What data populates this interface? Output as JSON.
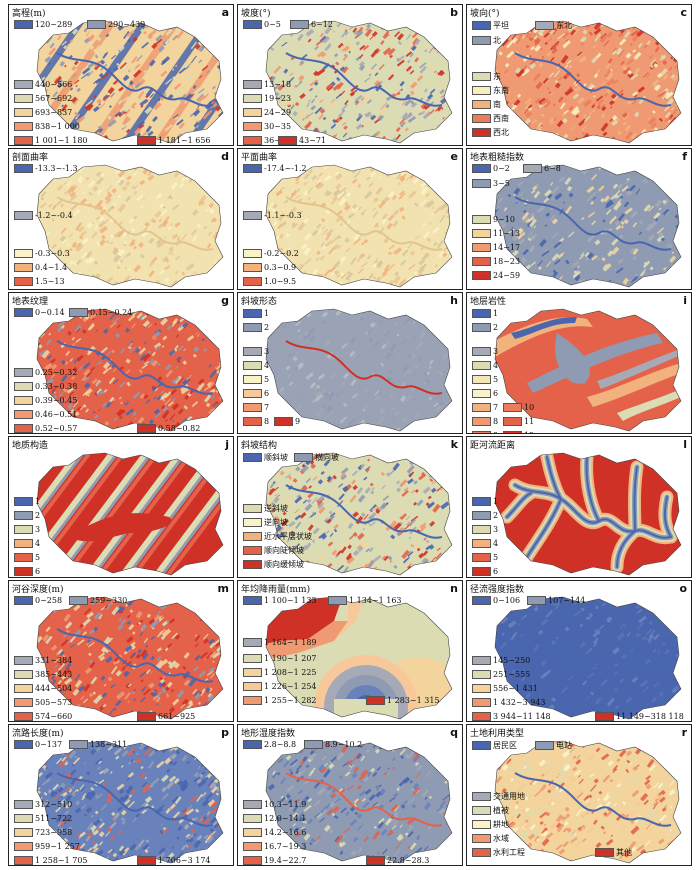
{
  "panels": [
    {
      "id": "a",
      "title": "高程(m)",
      "letter": "a",
      "scheme": "elev",
      "legend": [
        {
          "label": "120~289",
          "color": "#4a66ae"
        },
        {
          "label": "290~439",
          "color": "#8e9bb3"
        },
        {
          "label": "440~566",
          "color": "#a5aab6"
        },
        {
          "label": "567~692",
          "color": "#dcdcb4"
        },
        {
          "label": "693~837",
          "color": "#f2d49c"
        },
        {
          "label": "838~1 000",
          "color": "#ef9a72"
        },
        {
          "label": "1 001~1 180",
          "color": "#e4624a"
        },
        {
          "label": "1 181~1 656",
          "color": "#cf3127"
        }
      ]
    },
    {
      "id": "b",
      "title": "坡度(°)",
      "letter": "b",
      "scheme": "noise",
      "legend": [
        {
          "label": "0~5",
          "color": "#4a66ae"
        },
        {
          "label": "6~12",
          "color": "#8e9bb3"
        },
        {
          "label": "13~18",
          "color": "#a5aab6"
        },
        {
          "label": "19~23",
          "color": "#dcdcb4"
        },
        {
          "label": "24~29",
          "color": "#f2d49c"
        },
        {
          "label": "30~35",
          "color": "#ef9a72"
        },
        {
          "label": "36~42",
          "color": "#e4624a"
        },
        {
          "label": "43~71",
          "color": "#cf3127"
        }
      ]
    },
    {
      "id": "c",
      "title": "坡向(°)",
      "letter": "c",
      "scheme": "aspect",
      "legend": [
        {
          "label": "平坦",
          "color": "#4a66ae"
        },
        {
          "label": "东北",
          "color": "#a5aab6"
        },
        {
          "label": "北",
          "color": "#8e9bb3"
        },
        {
          "label": "东",
          "color": "#dcdcb4"
        },
        {
          "label": "东南",
          "color": "#f7eec0"
        },
        {
          "label": "南",
          "color": "#f2b27e"
        },
        {
          "label": "西南",
          "color": "#ea7e5c"
        },
        {
          "label": "西北",
          "color": "#cf3127"
        }
      ]
    },
    {
      "id": "d",
      "title": "剖面曲率",
      "letter": "d",
      "scheme": "curv",
      "legend": [
        {
          "label": "-13.3~-1.3",
          "color": "#4a66ae"
        },
        {
          "label": "-1.2~-0.4",
          "color": "#a5aab6"
        },
        {
          "label": "-0.3~0.3",
          "color": "#faf3c8"
        },
        {
          "label": "0.4~1.4",
          "color": "#f2b27e"
        },
        {
          "label": "1.5~13",
          "color": "#e4624a"
        }
      ]
    },
    {
      "id": "e",
      "title": "平面曲率",
      "letter": "e",
      "scheme": "curv",
      "legend": [
        {
          "label": "-17.4~-1.2",
          "color": "#4a66ae"
        },
        {
          "label": "-1.1~-0.3",
          "color": "#a5aab6"
        },
        {
          "label": "-0.2~0.2",
          "color": "#faf3c8"
        },
        {
          "label": "0.3~0.9",
          "color": "#f2b27e"
        },
        {
          "label": "1.0~9.5",
          "color": "#e4624a"
        }
      ]
    },
    {
      "id": "f",
      "title": "地表粗糙指数",
      "letter": "f",
      "scheme": "rough",
      "legend": [
        {
          "label": "0~2",
          "color": "#4a66ae"
        },
        {
          "label": "6~8",
          "color": "#a5aab6"
        },
        {
          "label": "3~5",
          "color": "#8e9bb3"
        },
        {
          "label": "9~10",
          "color": "#dcdcb4"
        },
        {
          "label": "11~13",
          "color": "#f2d49c"
        },
        {
          "label": "14~17",
          "color": "#ef9a72"
        },
        {
          "label": "18~23",
          "color": "#e4624a"
        },
        {
          "label": "24~59",
          "color": "#cf3127"
        }
      ]
    },
    {
      "id": "g",
      "title": "地表纹理",
      "letter": "g",
      "scheme": "texture",
      "legend": [
        {
          "label": "0~0.14",
          "color": "#4a66ae"
        },
        {
          "label": "0.15~0.24",
          "color": "#8e9bb3"
        },
        {
          "label": "0.25~0.32",
          "color": "#a5aab6"
        },
        {
          "label": "0.33~0.38",
          "color": "#dcdcb4"
        },
        {
          "label": "0.39~0.45",
          "color": "#f2d49c"
        },
        {
          "label": "0.46~0.51",
          "color": "#ef9a72"
        },
        {
          "label": "0.52~0.57",
          "color": "#e4624a"
        },
        {
          "label": "0.58~0.82",
          "color": "#cf3127"
        }
      ]
    },
    {
      "id": "h",
      "title": "斜坡形态",
      "letter": "h",
      "scheme": "gray",
      "legend": [
        {
          "label": "1",
          "color": "#4a66ae"
        },
        {
          "label": "2",
          "color": "#8e9bb3"
        },
        {
          "label": "3",
          "color": "#a5aab6"
        },
        {
          "label": "4",
          "color": "#dcdcb4"
        },
        {
          "label": "5",
          "color": "#faf3c8"
        },
        {
          "label": "6",
          "color": "#f7c99a"
        },
        {
          "label": "7",
          "color": "#ef9a72"
        },
        {
          "label": "8",
          "color": "#e4624a"
        },
        {
          "label": "9",
          "color": "#cf3127"
        }
      ]
    },
    {
      "id": "i",
      "title": "地层岩性",
      "letter": "i",
      "scheme": "litho",
      "legend": [
        {
          "label": "1",
          "color": "#4a66ae"
        },
        {
          "label": "2",
          "color": "#8e9bb3"
        },
        {
          "label": "3",
          "color": "#a5aab6"
        },
        {
          "label": "4",
          "color": "#dcdcb4"
        },
        {
          "label": "5",
          "color": "#f2e7b5"
        },
        {
          "label": "6",
          "color": "#faf3c8"
        },
        {
          "label": "7",
          "color": "#f2b27e"
        },
        {
          "label": "10",
          "color": "#ea7e5c"
        },
        {
          "label": "8",
          "color": "#ef9a72"
        },
        {
          "label": "11",
          "color": "#e4624a"
        },
        {
          "label": "9",
          "color": "#e87e60"
        },
        {
          "label": "12",
          "color": "#cf3127"
        }
      ]
    },
    {
      "id": "j",
      "title": "地质构造",
      "letter": "j",
      "scheme": "struct",
      "legend": [
        {
          "label": "1",
          "color": "#4a66ae"
        },
        {
          "label": "2",
          "color": "#8e9bb3"
        },
        {
          "label": "3",
          "color": "#dcdcb4"
        },
        {
          "label": "4",
          "color": "#f2b27e"
        },
        {
          "label": "5",
          "color": "#e4624a"
        },
        {
          "label": "6",
          "color": "#cf3127"
        }
      ]
    },
    {
      "id": "k",
      "title": "斜坡结构",
      "letter": "k",
      "scheme": "noise",
      "legend": [
        {
          "label": "顺斜坡",
          "color": "#4a66ae"
        },
        {
          "label": "横向坡",
          "color": "#8e9bb3"
        },
        {
          "label": "逆斜坡",
          "color": "#dcdcb4"
        },
        {
          "label": "逆向坡",
          "color": "#faf3c8"
        },
        {
          "label": "近水平层状坡",
          "color": "#f2b27e"
        },
        {
          "label": "顺向陡倾坡",
          "color": "#e4624a"
        },
        {
          "label": "顺向缓倾坡",
          "color": "#cf3127"
        }
      ]
    },
    {
      "id": "l",
      "title": "距河流距离",
      "letter": "l",
      "scheme": "river",
      "legend": [
        {
          "label": "1",
          "color": "#4a66ae"
        },
        {
          "label": "2",
          "color": "#8e9bb3"
        },
        {
          "label": "3",
          "color": "#dcdcb4"
        },
        {
          "label": "4",
          "color": "#f2b27e"
        },
        {
          "label": "5",
          "color": "#e4624a"
        },
        {
          "label": "6",
          "color": "#cf3127"
        }
      ]
    },
    {
      "id": "m",
      "title": "河谷深度(m)",
      "letter": "m",
      "scheme": "texture",
      "legend": [
        {
          "label": "0~258",
          "color": "#4a66ae"
        },
        {
          "label": "259~330",
          "color": "#8e9bb3"
        },
        {
          "label": "331~384",
          "color": "#a5aab6"
        },
        {
          "label": "385~443",
          "color": "#dcdcb4"
        },
        {
          "label": "444~504",
          "color": "#f2d49c"
        },
        {
          "label": "505~573",
          "color": "#ef9a72"
        },
        {
          "label": "574~660",
          "color": "#e4624a"
        },
        {
          "label": "661~925",
          "color": "#cf3127"
        }
      ]
    },
    {
      "id": "n",
      "title": "年均降雨量(mm)",
      "letter": "n",
      "scheme": "rain",
      "legend": [
        {
          "label": "1 100~1 133",
          "color": "#4a66ae"
        },
        {
          "label": "1 134~1 163",
          "color": "#8e9bb3"
        },
        {
          "label": "1 164~1 189",
          "color": "#a5aab6"
        },
        {
          "label": "1 190~1 207",
          "color": "#dcdcb4"
        },
        {
          "label": "1 208~1 225",
          "color": "#f2d49c"
        },
        {
          "label": "1 226~1 254",
          "color": "#f7c99a"
        },
        {
          "label": "1 255~1 282",
          "color": "#ef9a72"
        },
        {
          "label": "1 283~1 315",
          "color": "#cf3127"
        }
      ]
    },
    {
      "id": "o",
      "title": "径流强度指数",
      "letter": "o",
      "scheme": "blue",
      "legend": [
        {
          "label": "0~106",
          "color": "#4a66ae"
        },
        {
          "label": "107~144",
          "color": "#8e9bb3"
        },
        {
          "label": "145~250",
          "color": "#a5aab6"
        },
        {
          "label": "251~555",
          "color": "#dcdcb4"
        },
        {
          "label": "556~1 431",
          "color": "#f2d49c"
        },
        {
          "label": "1 432~3 943",
          "color": "#ef9a72"
        },
        {
          "label": "3 944~11 148",
          "color": "#e4624a"
        },
        {
          "label": "11 149~318 118",
          "color": "#cf3127"
        }
      ]
    },
    {
      "id": "p",
      "title": "流路长度(m)",
      "letter": "p",
      "scheme": "flow",
      "legend": [
        {
          "label": "0~137",
          "color": "#4a66ae"
        },
        {
          "label": "138~311",
          "color": "#8e9bb3"
        },
        {
          "label": "312~510",
          "color": "#a5aab6"
        },
        {
          "label": "511~722",
          "color": "#dcdcb4"
        },
        {
          "label": "723~958",
          "color": "#f2d49c"
        },
        {
          "label": "959~1 257",
          "color": "#ef9a72"
        },
        {
          "label": "1 258~1 705",
          "color": "#e4624a"
        },
        {
          "label": "1 706~3 174",
          "color": "#cf3127"
        }
      ]
    },
    {
      "id": "q",
      "title": "地形湿度指数",
      "letter": "q",
      "scheme": "twi",
      "legend": [
        {
          "label": "2.8~8.8",
          "color": "#4a66ae"
        },
        {
          "label": "8.9~10.2",
          "color": "#8e9bb3"
        },
        {
          "label": "10.3~11.9",
          "color": "#a5aab6"
        },
        {
          "label": "12.0~14.1",
          "color": "#dcdcb4"
        },
        {
          "label": "14.2~16.6",
          "color": "#f2d49c"
        },
        {
          "label": "16.7~19.3",
          "color": "#ef9a72"
        },
        {
          "label": "19.4~22.7",
          "color": "#e4624a"
        },
        {
          "label": "22.8~28.3",
          "color": "#cf3127"
        }
      ]
    },
    {
      "id": "r",
      "title": "土地利用类型",
      "letter": "r",
      "scheme": "land",
      "legend": [
        {
          "label": "居民区",
          "color": "#4a66ae"
        },
        {
          "label": "电站",
          "color": "#8e9bb3"
        },
        {
          "label": "交通用地",
          "color": "#a5aab6"
        },
        {
          "label": "植被",
          "color": "#dcdcb4"
        },
        {
          "label": "耕地",
          "color": "#faf3c8"
        },
        {
          "label": "水域",
          "color": "#ef9a72"
        },
        {
          "label": "水利工程",
          "color": "#e4624a"
        },
        {
          "label": "其他",
          "color": "#cf3127"
        }
      ]
    }
  ]
}
